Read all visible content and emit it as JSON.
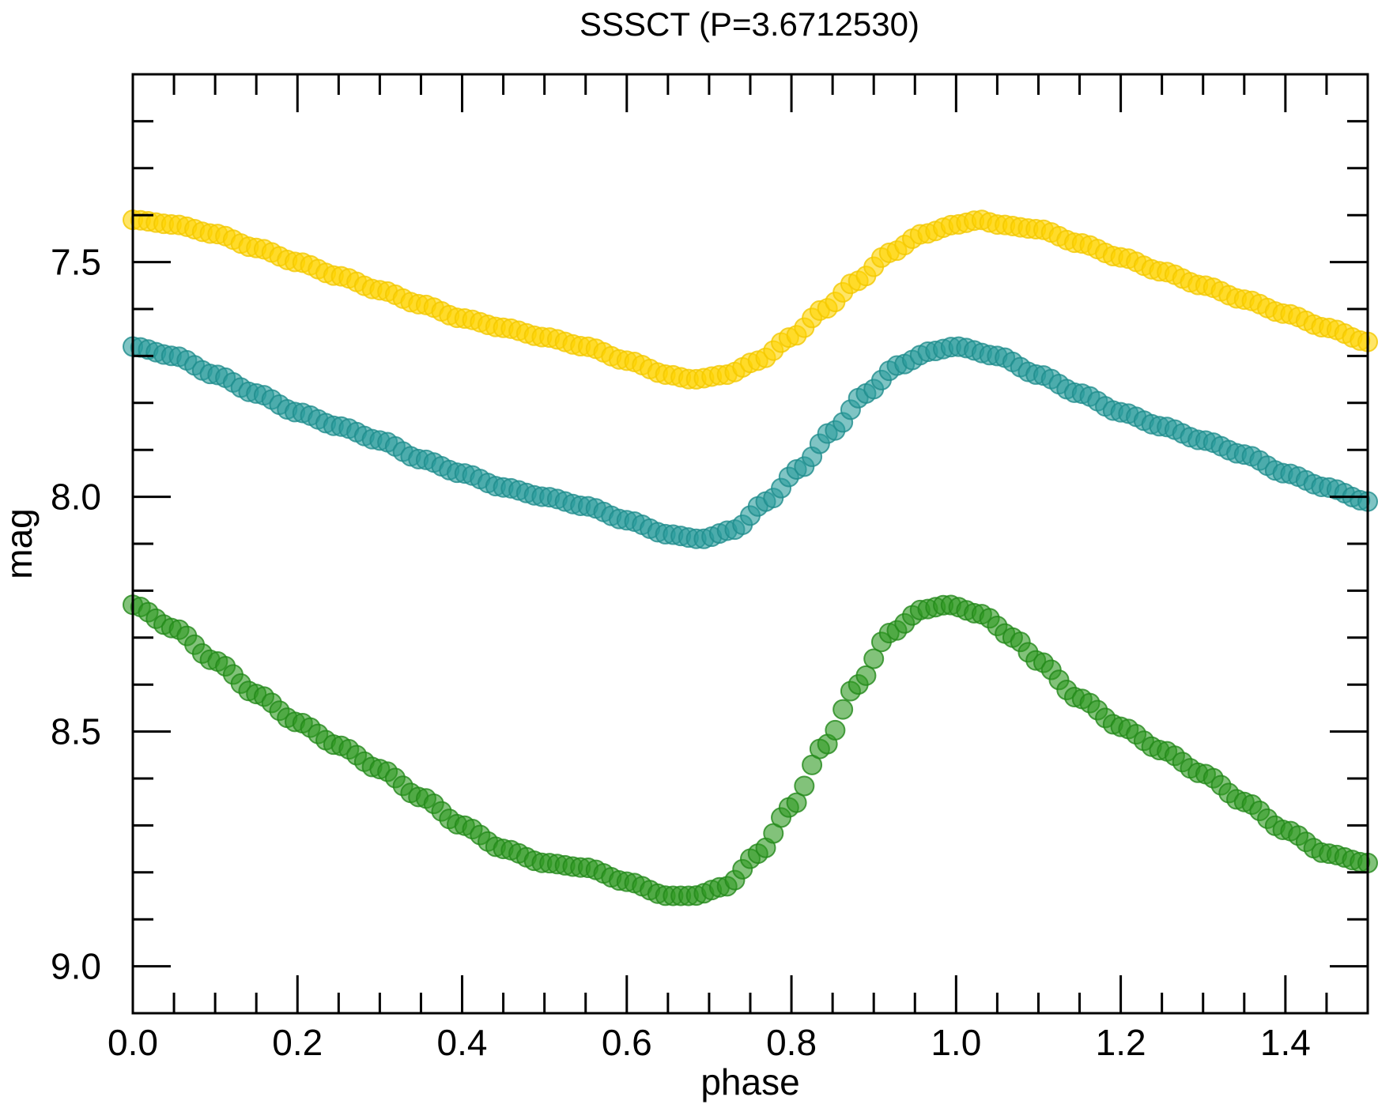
{
  "chart_data": {
    "type": "scatter",
    "title": "SSSCT (P=3.6712530)",
    "xlabel": "phase",
    "ylabel": "mag",
    "xlim": [
      0.0,
      1.5
    ],
    "ylim": [
      9.1,
      7.1
    ],
    "y_inverted": true,
    "grid": false,
    "legend": "none",
    "x_major_ticks": [
      0.0,
      0.2,
      0.4,
      0.6,
      0.8,
      1.0,
      1.2,
      1.4
    ],
    "x_tick_labels": [
      "0.0",
      "0.2",
      "0.4",
      "0.6",
      "0.8",
      "1.0",
      "1.2",
      "1.4"
    ],
    "y_major_ticks": [
      7.5,
      8.0,
      8.5,
      9.0
    ],
    "y_tick_labels": [
      "7.5",
      "8.0",
      "8.5",
      "9.0"
    ],
    "series": [
      {
        "color": "#ffd400",
        "edge": "#f2c800",
        "x": [
          0.0,
          0.05,
          0.1,
          0.15,
          0.2,
          0.25,
          0.3,
          0.35,
          0.4,
          0.45,
          0.5,
          0.55,
          0.6,
          0.65,
          0.68,
          0.72,
          0.76,
          0.8,
          0.84,
          0.88,
          0.92,
          0.96,
          1.0,
          1.03,
          1.05,
          1.1,
          1.15,
          1.2,
          1.25,
          1.3,
          1.35,
          1.4,
          1.45,
          1.5
        ],
        "y": [
          7.41,
          7.42,
          7.44,
          7.47,
          7.5,
          7.53,
          7.56,
          7.59,
          7.62,
          7.64,
          7.66,
          7.68,
          7.71,
          7.74,
          7.75,
          7.74,
          7.71,
          7.66,
          7.6,
          7.54,
          7.48,
          7.44,
          7.42,
          7.41,
          7.42,
          7.43,
          7.46,
          7.49,
          7.52,
          7.55,
          7.58,
          7.61,
          7.64,
          7.67
        ]
      },
      {
        "color": "#2a9c9c",
        "edge": "#1f8c8c",
        "x": [
          0.0,
          0.05,
          0.1,
          0.15,
          0.2,
          0.25,
          0.3,
          0.35,
          0.4,
          0.45,
          0.5,
          0.55,
          0.6,
          0.65,
          0.69,
          0.73,
          0.77,
          0.81,
          0.85,
          0.89,
          0.93,
          0.97,
          1.0,
          1.05,
          1.1,
          1.15,
          1.2,
          1.25,
          1.3,
          1.35,
          1.4,
          1.45,
          1.5
        ],
        "y": [
          7.68,
          7.7,
          7.74,
          7.78,
          7.82,
          7.85,
          7.88,
          7.92,
          7.95,
          7.98,
          8.0,
          8.02,
          8.05,
          8.08,
          8.09,
          8.07,
          8.01,
          7.94,
          7.86,
          7.78,
          7.72,
          7.69,
          7.68,
          7.7,
          7.74,
          7.78,
          7.82,
          7.85,
          7.88,
          7.91,
          7.95,
          7.98,
          8.01
        ]
      },
      {
        "color": "#2e9a22",
        "edge": "#23881a",
        "x": [
          0.0,
          0.05,
          0.1,
          0.15,
          0.2,
          0.25,
          0.3,
          0.35,
          0.4,
          0.45,
          0.5,
          0.55,
          0.6,
          0.65,
          0.68,
          0.72,
          0.76,
          0.8,
          0.84,
          0.88,
          0.92,
          0.96,
          0.99,
          1.03,
          1.07,
          1.1,
          1.15,
          1.2,
          1.25,
          1.3,
          1.35,
          1.4,
          1.45,
          1.5
        ],
        "y": [
          8.23,
          8.28,
          8.35,
          8.42,
          8.48,
          8.53,
          8.58,
          8.64,
          8.7,
          8.75,
          8.78,
          8.79,
          8.82,
          8.85,
          8.85,
          8.83,
          8.76,
          8.66,
          8.53,
          8.4,
          8.29,
          8.24,
          8.23,
          8.25,
          8.3,
          8.35,
          8.43,
          8.49,
          8.54,
          8.59,
          8.65,
          8.71,
          8.76,
          8.78
        ]
      }
    ]
  }
}
